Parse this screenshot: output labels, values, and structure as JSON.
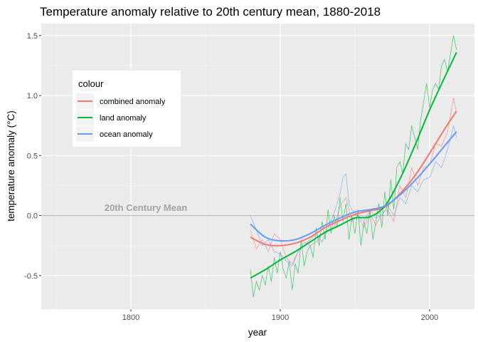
{
  "chart_data": {
    "type": "line",
    "title": "Temperature anomaly relative to 20th century mean, 1880-2018",
    "xlabel": "year",
    "ylabel": "temperature anomaly (°C)",
    "xlim": [
      1740,
      2030
    ],
    "ylim": [
      -0.78,
      1.6
    ],
    "x_ticks": [
      1800,
      1900,
      2000
    ],
    "y_ticks": [
      -0.5,
      0.0,
      0.5,
      1.0,
      1.5
    ],
    "x_tick_labels": [
      "1800",
      "1900",
      "2000"
    ],
    "y_tick_labels": [
      "-0.5",
      "0.0",
      "0.5",
      "1.0",
      "1.5"
    ],
    "grid": true,
    "legend": {
      "title": "colour",
      "position": "top-left inside",
      "entries": [
        {
          "label": "combined anomaly",
          "color": "#F8766D"
        },
        {
          "label": "land anomaly",
          "color": "#00BA38"
        },
        {
          "label": "ocean anomaly",
          "color": "#619CFF"
        }
      ]
    },
    "reference_line": {
      "y": 0.0,
      "label": "20th Century Mean",
      "label_x": 1810,
      "label_y": 0.04,
      "color": "#b0b0b0"
    },
    "smooth_series": [
      {
        "name": "combined anomaly",
        "color": "#F8766D",
        "x": [
          1880,
          1890,
          1900,
          1910,
          1920,
          1930,
          1940,
          1950,
          1960,
          1970,
          1980,
          1990,
          2000,
          2010,
          2018
        ],
        "y": [
          -0.18,
          -0.24,
          -0.25,
          -0.23,
          -0.18,
          -0.1,
          -0.04,
          0.01,
          0.04,
          0.07,
          0.18,
          0.33,
          0.52,
          0.72,
          0.87
        ]
      },
      {
        "name": "land anomaly",
        "color": "#00BA38",
        "x": [
          1880,
          1890,
          1900,
          1910,
          1920,
          1930,
          1940,
          1950,
          1960,
          1970,
          1980,
          1990,
          2000,
          2010,
          2018
        ],
        "y": [
          -0.52,
          -0.45,
          -0.37,
          -0.3,
          -0.22,
          -0.14,
          -0.08,
          -0.02,
          -0.01,
          0.08,
          0.3,
          0.58,
          0.88,
          1.15,
          1.36
        ]
      },
      {
        "name": "ocean anomaly",
        "color": "#619CFF",
        "x": [
          1880,
          1890,
          1900,
          1910,
          1920,
          1930,
          1940,
          1950,
          1960,
          1970,
          1980,
          1990,
          2000,
          2010,
          2018
        ],
        "y": [
          -0.07,
          -0.18,
          -0.21,
          -0.2,
          -0.15,
          -0.08,
          -0.02,
          0.03,
          0.05,
          0.08,
          0.17,
          0.29,
          0.43,
          0.58,
          0.7
        ]
      }
    ],
    "raw_series": [
      {
        "name": "combined anomaly",
        "color": "#F8766D",
        "x": [
          1880,
          1884,
          1888,
          1892,
          1896,
          1900,
          1904,
          1908,
          1912,
          1916,
          1920,
          1924,
          1928,
          1932,
          1936,
          1940,
          1944,
          1948,
          1952,
          1956,
          1960,
          1964,
          1968,
          1972,
          1976,
          1980,
          1984,
          1988,
          1992,
          1996,
          2000,
          2004,
          2008,
          2012,
          2016,
          2018
        ],
        "y": [
          -0.12,
          -0.28,
          -0.2,
          -0.3,
          -0.15,
          -0.2,
          -0.35,
          -0.4,
          -0.3,
          -0.22,
          -0.25,
          -0.22,
          -0.15,
          -0.12,
          -0.1,
          0.08,
          0.15,
          -0.05,
          0.0,
          -0.1,
          0.02,
          -0.08,
          0.02,
          0.05,
          -0.05,
          0.25,
          0.15,
          0.4,
          0.25,
          0.4,
          0.42,
          0.6,
          0.58,
          0.7,
          0.98,
          0.85
        ]
      },
      {
        "name": "land anomaly",
        "color": "#00BA38",
        "x": [
          1880,
          1882,
          1884,
          1886,
          1888,
          1890,
          1892,
          1894,
          1896,
          1898,
          1900,
          1902,
          1904,
          1906,
          1908,
          1910,
          1912,
          1914,
          1916,
          1918,
          1920,
          1922,
          1924,
          1926,
          1928,
          1930,
          1932,
          1934,
          1936,
          1938,
          1940,
          1942,
          1944,
          1946,
          1948,
          1950,
          1952,
          1954,
          1956,
          1958,
          1960,
          1962,
          1964,
          1966,
          1968,
          1970,
          1972,
          1974,
          1976,
          1978,
          1980,
          1982,
          1984,
          1986,
          1988,
          1990,
          1992,
          1994,
          1996,
          1998,
          2000,
          2002,
          2004,
          2006,
          2008,
          2010,
          2012,
          2014,
          2016,
          2018
        ],
        "y": [
          -0.45,
          -0.68,
          -0.55,
          -0.62,
          -0.5,
          -0.58,
          -0.42,
          -0.55,
          -0.35,
          -0.48,
          -0.3,
          -0.45,
          -0.52,
          -0.38,
          -0.62,
          -0.4,
          -0.48,
          -0.2,
          -0.42,
          -0.3,
          -0.25,
          -0.35,
          -0.1,
          -0.25,
          -0.05,
          -0.2,
          0.05,
          -0.15,
          0.0,
          -0.1,
          0.15,
          -0.05,
          0.1,
          -0.2,
          0.0,
          -0.15,
          0.05,
          -0.25,
          -0.05,
          -0.15,
          0.05,
          -0.2,
          -0.05,
          0.1,
          -0.1,
          0.2,
          0.0,
          0.3,
          0.05,
          0.4,
          0.45,
          0.35,
          0.6,
          0.55,
          0.75,
          0.65,
          0.55,
          0.8,
          0.95,
          1.1,
          0.9,
          1.05,
          1.1,
          1.05,
          1.25,
          1.3,
          1.2,
          1.35,
          1.5,
          1.38
        ]
      },
      {
        "name": "ocean anomaly",
        "color": "#619CFF",
        "x": [
          1880,
          1884,
          1888,
          1892,
          1896,
          1900,
          1904,
          1908,
          1912,
          1916,
          1920,
          1924,
          1928,
          1932,
          1936,
          1940,
          1942,
          1944,
          1946,
          1948,
          1952,
          1956,
          1960,
          1964,
          1968,
          1972,
          1976,
          1980,
          1984,
          1988,
          1992,
          1996,
          2000,
          2004,
          2008,
          2012,
          2016,
          2018
        ],
        "y": [
          0.0,
          -0.12,
          -0.25,
          -0.2,
          -0.3,
          -0.32,
          -0.38,
          -0.42,
          -0.3,
          -0.25,
          -0.2,
          -0.15,
          -0.22,
          -0.1,
          0.02,
          0.18,
          0.32,
          0.35,
          0.1,
          0.05,
          0.0,
          -0.05,
          0.05,
          -0.02,
          0.0,
          0.08,
          0.0,
          0.15,
          0.1,
          0.25,
          0.2,
          0.3,
          0.32,
          0.45,
          0.4,
          0.55,
          0.75,
          0.65
        ]
      }
    ]
  }
}
